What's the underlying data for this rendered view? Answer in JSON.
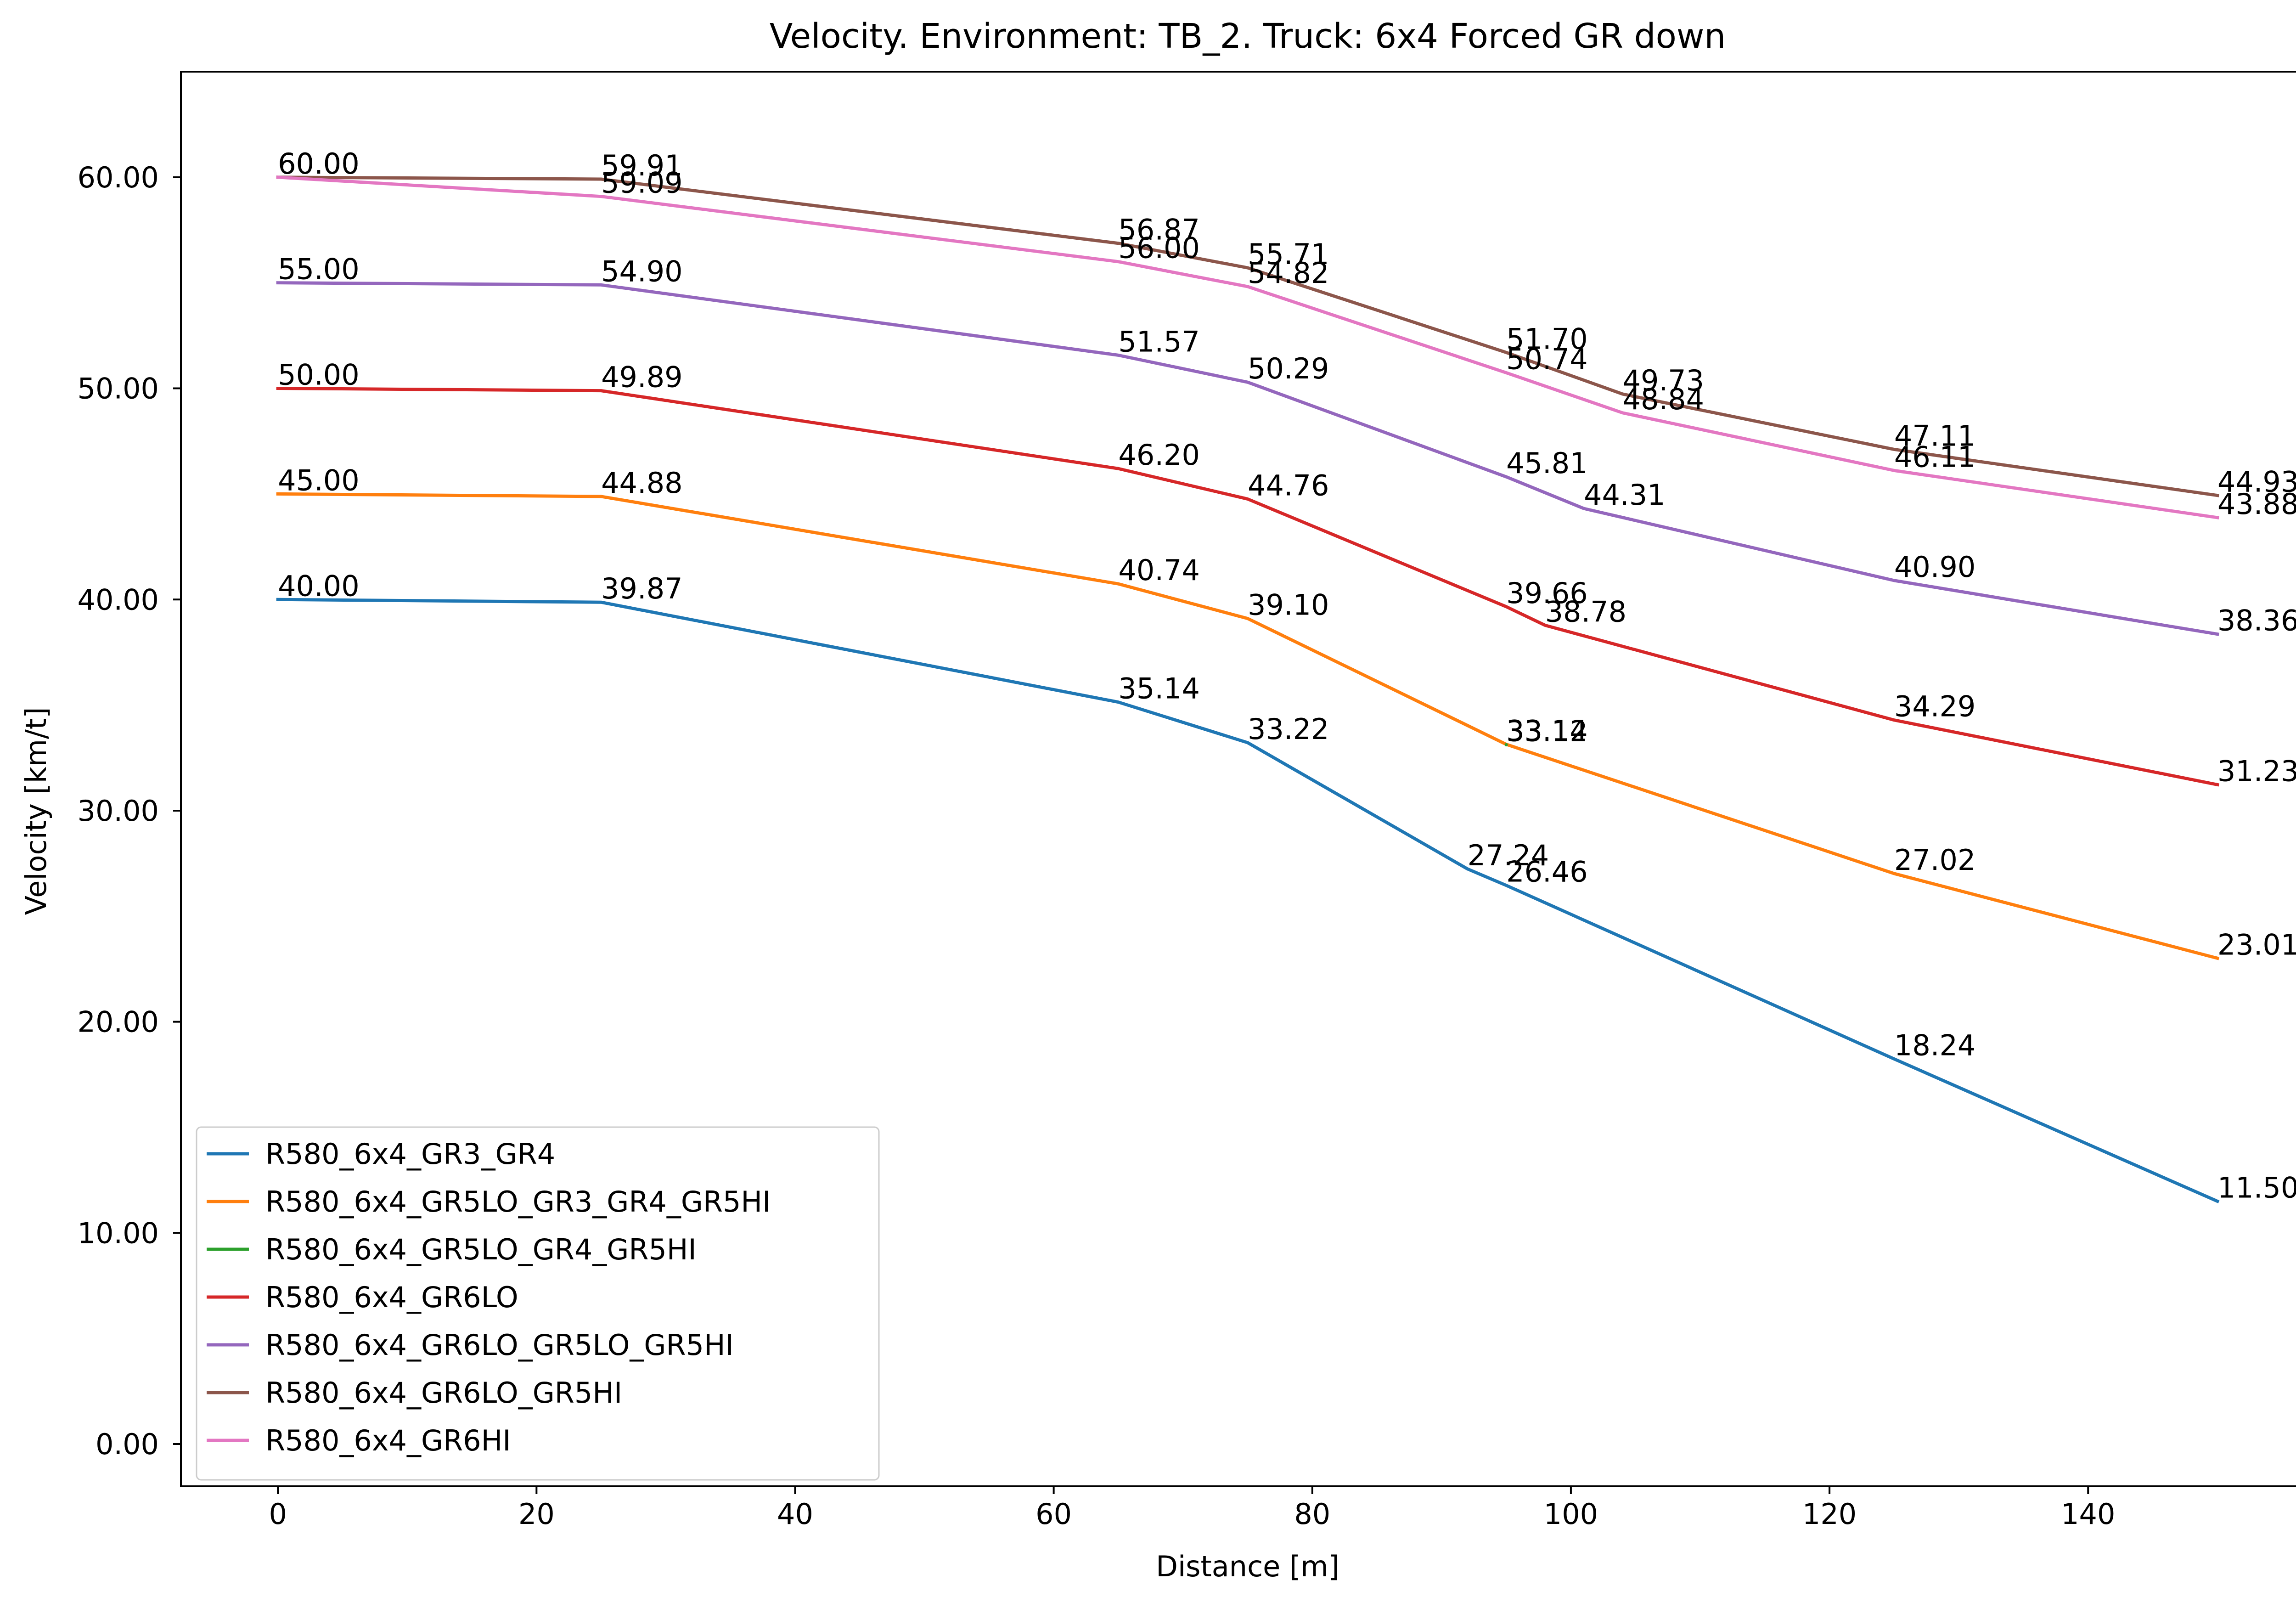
{
  "chart_data": {
    "type": "line",
    "title": "Velocity. Environment: TB_2. Truck: 6x4 Forced GR down",
    "xlabel": "Distance [m]",
    "ylabel": "Velocity [km/t]",
    "xlim": [
      -7.5,
      157.5
    ],
    "ylim": [
      -2,
      65
    ],
    "xticks": [
      0,
      20,
      40,
      60,
      80,
      100,
      120,
      140
    ],
    "xtick_labels": [
      "0",
      "20",
      "40",
      "60",
      "80",
      "100",
      "120",
      "140"
    ],
    "yticks": [
      0,
      10,
      20,
      30,
      40,
      50,
      60
    ],
    "ytick_labels": [
      "0.00",
      "10.00",
      "20.00",
      "30.00",
      "40.00",
      "50.00",
      "60.00"
    ],
    "grid": false,
    "legend_position": "lower-left",
    "series": [
      {
        "name": "R580_6x4_GR3_GR4",
        "color": "#1f77b4",
        "x": [
          0,
          25,
          65,
          75,
          92,
          95,
          125,
          150
        ],
        "y": [
          40.0,
          39.87,
          35.14,
          33.22,
          27.24,
          26.46,
          18.24,
          11.5
        ],
        "labels": [
          "40.00",
          "39.87",
          "35.14",
          "33.22",
          "27.24",
          "26.46",
          "18.24",
          "11.50"
        ]
      },
      {
        "name": "R580_6x4_GR5LO_GR3_GR4_GR5HI",
        "color": "#ff7f0e",
        "x": [
          0,
          25,
          65,
          75,
          95,
          125,
          150
        ],
        "y": [
          45.0,
          44.88,
          40.74,
          39.1,
          33.14,
          27.02,
          23.01
        ],
        "labels": [
          "45.00",
          "44.88",
          "40.74",
          "39.10",
          "33.14",
          "27.02",
          "23.01"
        ]
      },
      {
        "name": "R580_6x4_GR5LO_GR4_GR5HI",
        "color": "#2ca02c",
        "x": [
          95
        ],
        "y": [
          33.12
        ],
        "labels": [
          "33.12"
        ]
      },
      {
        "name": "R580_6x4_GR6LO",
        "color": "#d62728",
        "x": [
          0,
          25,
          65,
          75,
          95,
          98,
          125,
          150
        ],
        "y": [
          50.0,
          49.89,
          46.2,
          44.76,
          39.66,
          38.78,
          34.29,
          31.23
        ],
        "labels": [
          "50.00",
          "49.89",
          "46.20",
          "44.76",
          "39.66",
          "38.78",
          "34.29",
          "31.23"
        ]
      },
      {
        "name": "R580_6x4_GR6LO_GR5LO_GR5HI",
        "color": "#9467bd",
        "x": [
          0,
          25,
          65,
          75,
          95,
          101,
          125,
          150
        ],
        "y": [
          55.0,
          54.9,
          51.57,
          50.29,
          45.81,
          44.31,
          40.9,
          38.36
        ],
        "labels": [
          "55.00",
          "54.90",
          "51.57",
          "50.29",
          "45.81",
          "44.31",
          "40.90",
          "38.36"
        ]
      },
      {
        "name": "R580_6x4_GR6LO_GR5HI",
        "color": "#8c564b",
        "x": [
          0,
          25,
          65,
          75,
          95,
          104,
          125,
          150
        ],
        "y": [
          60.0,
          59.91,
          56.87,
          55.71,
          51.7,
          49.73,
          47.11,
          44.93
        ],
        "labels": [
          "60.00",
          "59.91",
          "56.87",
          "55.71",
          "51.70",
          "49.73",
          "47.11",
          "44.93"
        ]
      },
      {
        "name": "R580_6x4_GR6HI",
        "color": "#e377c2",
        "x": [
          0,
          25,
          65,
          75,
          95,
          104,
          125,
          150
        ],
        "y": [
          60.0,
          59.09,
          56.0,
          54.82,
          50.74,
          48.84,
          46.11,
          43.88
        ],
        "labels": [
          "60.00",
          "59.09",
          "56.00",
          "54.82",
          "50.74",
          "48.84",
          "46.11",
          "43.88"
        ]
      }
    ]
  }
}
